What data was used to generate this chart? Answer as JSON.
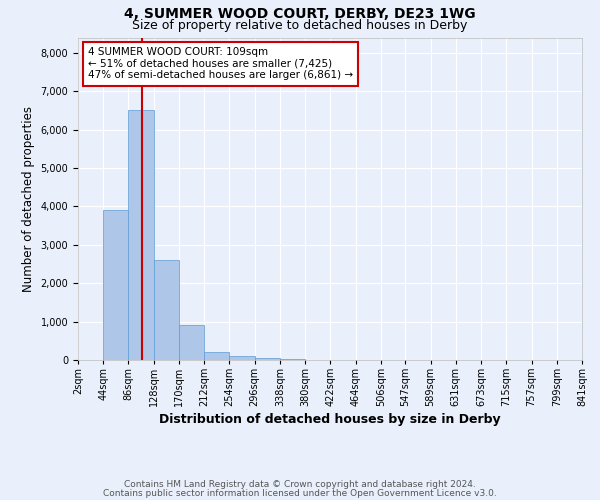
{
  "title_line1": "4, SUMMER WOOD COURT, DERBY, DE23 1WG",
  "title_line2": "Size of property relative to detached houses in Derby",
  "xlabel": "Distribution of detached houses by size in Derby",
  "ylabel": "Number of detached properties",
  "bin_edges": [
    2,
    44,
    86,
    128,
    170,
    212,
    254,
    296,
    338,
    380,
    422,
    464,
    506,
    547,
    589,
    631,
    673,
    715,
    757,
    799,
    841
  ],
  "bin_labels": [
    "2sqm",
    "44sqm",
    "86sqm",
    "128sqm",
    "170sqm",
    "212sqm",
    "254sqm",
    "296sqm",
    "338sqm",
    "380sqm",
    "422sqm",
    "464sqm",
    "506sqm",
    "547sqm",
    "589sqm",
    "631sqm",
    "673sqm",
    "715sqm",
    "757sqm",
    "799sqm",
    "841sqm"
  ],
  "bar_heights": [
    0,
    3900,
    6500,
    2600,
    900,
    200,
    100,
    50,
    30,
    10,
    0,
    0,
    0,
    0,
    0,
    0,
    0,
    0,
    0,
    0
  ],
  "bar_color": "#aec6e8",
  "bar_edge_color": "#5b9bd5",
  "background_color": "#eaf0fb",
  "grid_color": "#ffffff",
  "property_size": 109,
  "red_line_color": "#cc0000",
  "annotation_text": "4 SUMMER WOOD COURT: 109sqm\n← 51% of detached houses are smaller (7,425)\n47% of semi-detached houses are larger (6,861) →",
  "annotation_box_color": "#ffffff",
  "annotation_box_edge": "#cc0000",
  "ylim": [
    0,
    8400
  ],
  "yticks": [
    0,
    1000,
    2000,
    3000,
    4000,
    5000,
    6000,
    7000,
    8000
  ],
  "footnote_line1": "Contains HM Land Registry data © Crown copyright and database right 2024.",
  "footnote_line2": "Contains public sector information licensed under the Open Government Licence v3.0.",
  "title_fontsize": 10,
  "subtitle_fontsize": 9,
  "axis_label_fontsize": 8.5,
  "tick_fontsize": 7,
  "annotation_fontsize": 7.5,
  "footnote_fontsize": 6.5
}
